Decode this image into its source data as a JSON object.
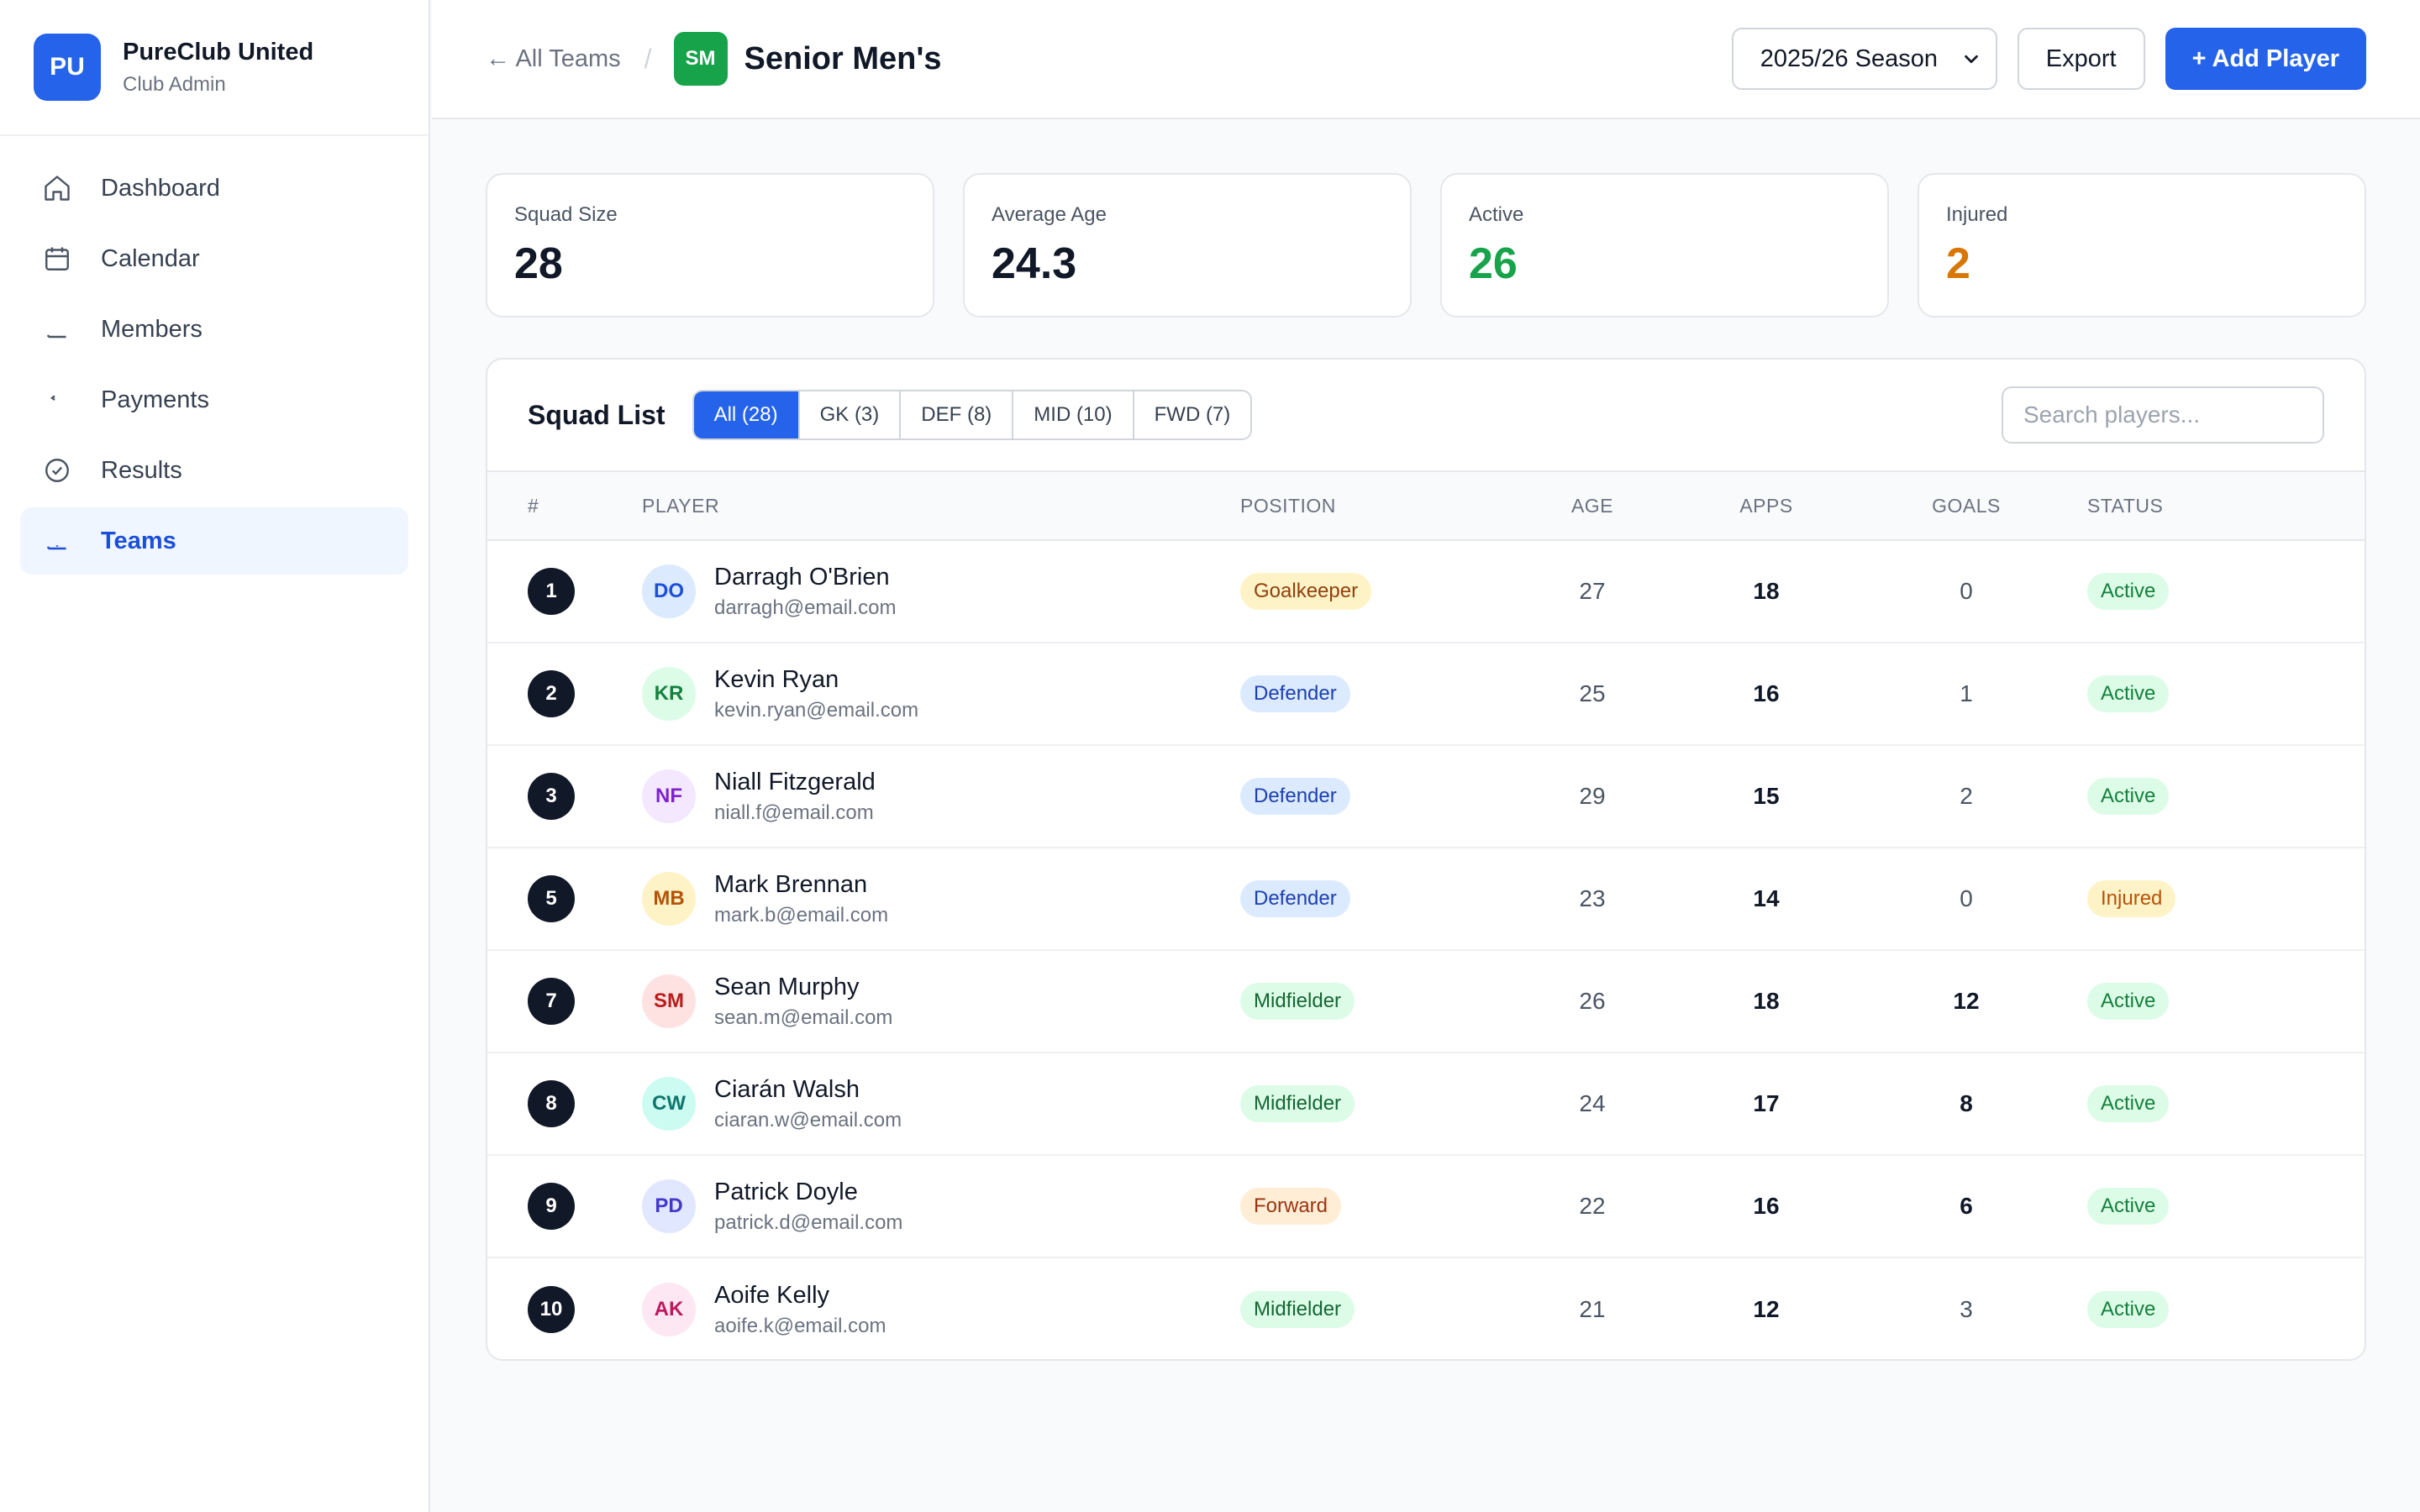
{
  "brand": {
    "initials": "PU",
    "name": "PureClub United",
    "subtitle": "Club Admin",
    "color": "#2563eb"
  },
  "sidebar": {
    "items": [
      {
        "label": "Dashboard",
        "icon": "home-icon",
        "active": false
      },
      {
        "label": "Calendar",
        "icon": "calendar-icon",
        "active": false
      },
      {
        "label": "Members",
        "icon": "members-icon",
        "active": false
      },
      {
        "label": "Payments",
        "icon": "payments-icon",
        "active": false
      },
      {
        "label": "Results",
        "icon": "check-circle-icon",
        "active": false
      },
      {
        "label": "Teams",
        "icon": "teams-icon",
        "active": true
      }
    ]
  },
  "header": {
    "back_label": "← All Teams",
    "separator": "/",
    "team_initials": "SM",
    "team_color": "#16a34a",
    "title": "Senior Men's",
    "season_value": "2025/26 Season",
    "export_label": "Export",
    "add_label": "+ Add Player"
  },
  "stats": [
    {
      "label": "Squad Size",
      "value": "28",
      "color": "#111827"
    },
    {
      "label": "Average Age",
      "value": "24.3",
      "color": "#111827"
    },
    {
      "label": "Active",
      "value": "26",
      "color": "#16a34a"
    },
    {
      "label": "Injured",
      "value": "2",
      "color": "#d97706"
    }
  ],
  "squad": {
    "title": "Squad List",
    "filters": [
      {
        "label": "All (28)",
        "active": true
      },
      {
        "label": "GK (3)",
        "active": false
      },
      {
        "label": "DEF (8)",
        "active": false
      },
      {
        "label": "MID (10)",
        "active": false
      },
      {
        "label": "FWD (7)",
        "active": false
      }
    ],
    "search_placeholder": "Search players...",
    "columns": {
      "num": "#",
      "player": "PLAYER",
      "position": "POSITION",
      "age": "AGE",
      "apps": "APPS",
      "goals": "GOALS",
      "status": "STATUS"
    },
    "players": [
      {
        "number": "1",
        "initials": "DO",
        "name": "Darragh O'Brien",
        "email": "darragh@email.com",
        "position": "Goalkeeper",
        "age": "27",
        "apps": "18",
        "goals": "0",
        "goals_bold": false,
        "status": "Active"
      },
      {
        "number": "2",
        "initials": "KR",
        "name": "Kevin Ryan",
        "email": "kevin.ryan@email.com",
        "position": "Defender",
        "age": "25",
        "apps": "16",
        "goals": "1",
        "goals_bold": false,
        "status": "Active"
      },
      {
        "number": "3",
        "initials": "NF",
        "name": "Niall Fitzgerald",
        "email": "niall.f@email.com",
        "position": "Defender",
        "age": "29",
        "apps": "15",
        "goals": "2",
        "goals_bold": false,
        "status": "Active"
      },
      {
        "number": "5",
        "initials": "MB",
        "name": "Mark Brennan",
        "email": "mark.b@email.com",
        "position": "Defender",
        "age": "23",
        "apps": "14",
        "goals": "0",
        "goals_bold": false,
        "status": "Injured"
      },
      {
        "number": "7",
        "initials": "SM",
        "name": "Sean Murphy",
        "email": "sean.m@email.com",
        "position": "Midfielder",
        "age": "26",
        "apps": "18",
        "goals": "12",
        "goals_bold": true,
        "status": "Active"
      },
      {
        "number": "8",
        "initials": "CW",
        "name": "Ciarán Walsh",
        "email": "ciaran.w@email.com",
        "position": "Midfielder",
        "age": "24",
        "apps": "17",
        "goals": "8",
        "goals_bold": true,
        "status": "Active"
      },
      {
        "number": "9",
        "initials": "PD",
        "name": "Patrick Doyle",
        "email": "patrick.d@email.com",
        "position": "Forward",
        "age": "22",
        "apps": "16",
        "goals": "6",
        "goals_bold": true,
        "status": "Active"
      },
      {
        "number": "10",
        "initials": "AK",
        "name": "Aoife Kelly",
        "email": "aoife.k@email.com",
        "position": "Midfielder",
        "age": "21",
        "apps": "12",
        "goals": "3",
        "goals_bold": false,
        "status": "Active"
      }
    ]
  },
  "colors": {
    "avatars": {
      "DO": {
        "bg": "#dbeafe",
        "fg": "#1d4ed8"
      },
      "KR": {
        "bg": "#dcfce7",
        "fg": "#15803d"
      },
      "NF": {
        "bg": "#f3e8ff",
        "fg": "#7e22ce"
      },
      "MB": {
        "bg": "#fef3c7",
        "fg": "#b45309"
      },
      "SM": {
        "bg": "#fee2e2",
        "fg": "#b91c1c"
      },
      "CW": {
        "bg": "#ccfbf1",
        "fg": "#0f766e"
      },
      "PD": {
        "bg": "#e0e7ff",
        "fg": "#4338ca"
      },
      "AK": {
        "bg": "#fce7f3",
        "fg": "#be185d"
      }
    },
    "positions": {
      "Goalkeeper": {
        "bg": "#fef3c7",
        "fg": "#92400e"
      },
      "Defender": {
        "bg": "#dbeafe",
        "fg": "#1e40af"
      },
      "Midfielder": {
        "bg": "#dcfce7",
        "fg": "#166534"
      },
      "Forward": {
        "bg": "#ffedd5",
        "fg": "#9a3412"
      }
    },
    "statuses": {
      "Active": {
        "bg": "#dcfce7",
        "fg": "#15803d"
      },
      "Injured": {
        "bg": "#fef3c7",
        "fg": "#b45309"
      }
    }
  }
}
